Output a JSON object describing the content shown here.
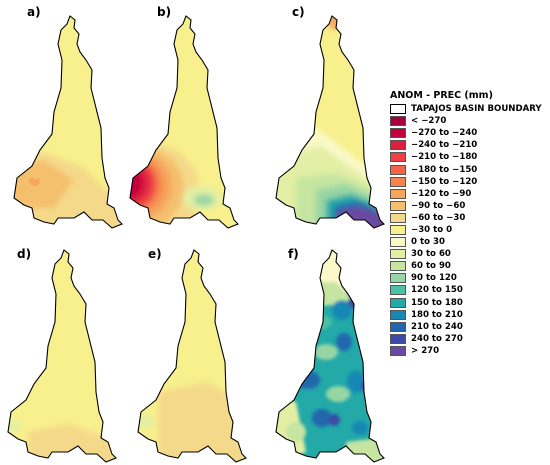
{
  "panels": [
    {
      "label": "a)"
    },
    {
      "label": "b)"
    },
    {
      "label": "c)"
    },
    {
      "label": "d)"
    },
    {
      "label": "e)"
    },
    {
      "label": "f)"
    }
  ],
  "legend": {
    "title": "ANOM - PREC (mm)",
    "boundary_label": "TAPAJOS BASIN BOUNDARY",
    "classes": [
      {
        "label": "< −270",
        "color": "#a8003f"
      },
      {
        "label": "−270 to −240",
        "color": "#c4003a"
      },
      {
        "label": "−240 to −210",
        "color": "#dc1f3e"
      },
      {
        "label": "−210 to −180",
        "color": "#ee4044"
      },
      {
        "label": "−180 to −150",
        "color": "#f5634a"
      },
      {
        "label": "−150 to −120",
        "color": "#f7844f"
      },
      {
        "label": "−120 to −90",
        "color": "#f6a55c"
      },
      {
        "label": "−90 to −60",
        "color": "#f4c06e"
      },
      {
        "label": "−60 to −30",
        "color": "#f5d98a"
      },
      {
        "label": "−30 to 0",
        "color": "#f8f08c"
      },
      {
        "label": "0 to 30",
        "color": "#fbf9c8"
      },
      {
        "label": "30 to 60",
        "color": "#e3efa4"
      },
      {
        "label": "60 to 90",
        "color": "#c5e5a1"
      },
      {
        "label": "90 to 120",
        "color": "#97d6a4"
      },
      {
        "label": "120 to 150",
        "color": "#4dbfa4"
      },
      {
        "label": "150 to 180",
        "color": "#22a9a8"
      },
      {
        "label": "180 to 210",
        "color": "#1788b5"
      },
      {
        "label": "210 to 240",
        "color": "#2067ad"
      },
      {
        "label": "240 to 270",
        "color": "#3b4ba6"
      },
      {
        "label": "> 270",
        "color": "#6a4aa0"
      }
    ]
  }
}
